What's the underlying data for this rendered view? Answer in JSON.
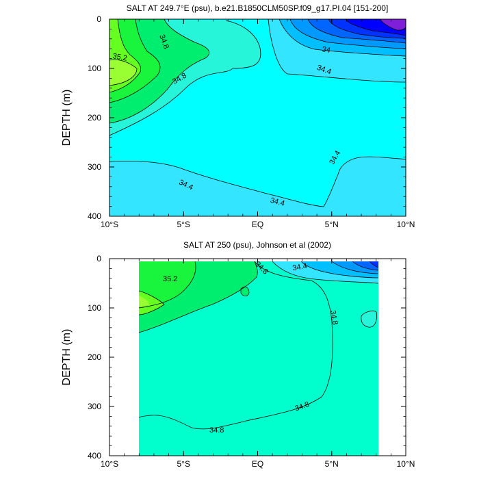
{
  "chart_data": [
    {
      "type": "contour",
      "title": "SALT AT 249.7°E (psu), b.e21.B1850CLM50SP.f09_g17.PI.04 [151-200]",
      "xlabel": "",
      "ylabel": "DEPTH (m)",
      "xlim": [
        -10,
        10
      ],
      "ylim": [
        400,
        0
      ],
      "x_ticks": [
        {
          "value": -10,
          "label": "10°S"
        },
        {
          "value": -5,
          "label": "5°S"
        },
        {
          "value": 0,
          "label": "EQ"
        },
        {
          "value": 5,
          "label": "5°N"
        },
        {
          "value": 10,
          "label": "10°N"
        }
      ],
      "y_ticks": [
        {
          "value": 0,
          "label": "0"
        },
        {
          "value": 100,
          "label": "100"
        },
        {
          "value": 200,
          "label": "200"
        },
        {
          "value": 300,
          "label": "300"
        },
        {
          "value": 400,
          "label": "400"
        }
      ],
      "data_extent": {
        "x": [
          -10,
          10
        ],
        "y": [
          0,
          400
        ]
      },
      "fill_colors": {
        "lt_33_6": "#7f1fd9",
        "33_6": "#0000ff",
        "33_7": "#0033ff",
        "33_8": "#0066ff",
        "33_9": "#0099ff",
        "34_0": "#00bfff",
        "34_2": "#33e5ff",
        "34_4": "#00ffff",
        "34_6": "#26f5d9",
        "34_8": "#00ffcc",
        "35_0": "#00ee70",
        "35_2": "#19f53c",
        "35_4": "#66ff22",
        "35_6": "#99ff33"
      },
      "contours": [
        {
          "level": 34.8,
          "label": "34.8",
          "label_at": [
            -6.2,
            25
          ],
          "points": [
            [
              -6.8,
              0
            ],
            [
              -5.5,
              35
            ],
            [
              -3,
              55
            ],
            [
              -4.5,
              90
            ],
            [
              -7.5,
              125
            ],
            [
              -10,
              180
            ]
          ]
        },
        {
          "level": 35.0,
          "label": "",
          "points": [
            [
              -8.2,
              0
            ],
            [
              -8,
              40
            ],
            [
              -7.5,
              80
            ],
            [
              -8.5,
              120
            ],
            [
              -10,
              140
            ]
          ]
        },
        {
          "level": 35.2,
          "label": "35.2",
          "label_at": [
            -9,
            70
          ],
          "points": [
            [
              -8.8,
              0
            ],
            [
              -8.6,
              50
            ],
            [
              -8.2,
              100
            ],
            [
              -9.2,
              125
            ],
            [
              -10,
              128
            ]
          ]
        },
        {
          "level": 35.4,
          "label": "",
          "points": [
            [
              -10,
              58
            ],
            [
              -9,
              85
            ],
            [
              -9,
              115
            ],
            [
              -10,
              120
            ]
          ]
        },
        {
          "level": 34.8,
          "label": "34.8",
          "label_at": [
            -5.3,
            112
          ],
          "points": [
            [
              -3,
              50
            ],
            [
              -6,
              90
            ],
            [
              -9,
              150
            ],
            [
              -10,
              160
            ]
          ]
        },
        {
          "level": 34.6,
          "label": "",
          "points": [
            [
              -10,
              195
            ],
            [
              -8,
              180
            ],
            [
              -5,
              145
            ],
            [
              -2,
              90
            ],
            [
              0.5,
              102
            ],
            [
              0.3,
              50
            ],
            [
              0,
              30
            ],
            [
              -1.5,
              10
            ],
            [
              -2,
              0
            ]
          ]
        },
        {
          "level": 34.6,
          "label": "",
          "points": [
            [
              0.8,
              0
            ],
            [
              1.5,
              20
            ],
            [
              2.2,
              100
            ],
            [
              6,
              110
            ],
            [
              9,
              125
            ],
            [
              10,
              130
            ]
          ]
        },
        {
          "level": 34.4,
          "label": "34.4",
          "label_at": [
            4.8,
            100
          ],
          "points": [
            [
              1.5,
              0
            ],
            [
              2,
              50
            ],
            [
              3.5,
              65
            ],
            [
              6,
              85
            ],
            [
              10,
              100
            ]
          ]
        },
        {
          "level": 34.2,
          "label": "",
          "points": [
            [
              2.6,
              0
            ],
            [
              3.5,
              40
            ],
            [
              6,
              60
            ],
            [
              10,
              70
            ]
          ]
        },
        {
          "level": 34.0,
          "label": "34",
          "label_at": [
            5.5,
            60
          ],
          "points": [
            [
              3.8,
              0
            ],
            [
              4.2,
              35
            ],
            [
              6,
              50
            ],
            [
              10,
              60
            ]
          ]
        },
        {
          "level": 33.9,
          "label": "",
          "points": [
            [
              5.2,
              0
            ],
            [
              5.5,
              25
            ],
            [
              8,
              40
            ],
            [
              10,
              45
            ]
          ]
        },
        {
          "level": 33.8,
          "label": "",
          "points": [
            [
              6.2,
              0
            ],
            [
              6.8,
              20
            ],
            [
              10,
              40
            ]
          ]
        },
        {
          "level": 33.7,
          "label": "",
          "points": [
            [
              7.2,
              0
            ],
            [
              7.6,
              15
            ],
            [
              10,
              35
            ]
          ]
        },
        {
          "level": 33.6,
          "label": "",
          "points": [
            [
              8.3,
              0
            ],
            [
              8.8,
              12
            ],
            [
              10,
              15
            ]
          ]
        },
        {
          "level": 34.4,
          "label": "34.4",
          "label_at": [
            -5,
            340
          ],
          "points": [
            [
              -10,
              290
            ],
            [
              -7,
              290
            ],
            [
              -3,
              335
            ],
            [
              1.5,
              355
            ],
            [
              3.5,
              380
            ],
            [
              4.8,
              330
            ],
            [
              5.5,
              260
            ],
            [
              7,
              245
            ],
            [
              10,
              285
            ]
          ]
        }
      ]
    },
    {
      "type": "contour",
      "title": "SALT AT 250 (psu), Johnson et al (2002)",
      "xlabel": "",
      "ylabel": "DEPTH (m)",
      "xlim": [
        -10,
        10
      ],
      "ylim": [
        400,
        0
      ],
      "x_ticks": [
        {
          "value": -10,
          "label": "10°S"
        },
        {
          "value": -5,
          "label": "5°S"
        },
        {
          "value": 0,
          "label": "EQ"
        },
        {
          "value": 5,
          "label": "5°N"
        },
        {
          "value": 10,
          "label": "10°N"
        }
      ],
      "y_ticks": [
        {
          "value": 0,
          "label": "0"
        },
        {
          "value": 100,
          "label": "100"
        },
        {
          "value": 200,
          "label": "200"
        },
        {
          "value": 300,
          "label": "300"
        },
        {
          "value": 400,
          "label": "400"
        }
      ],
      "data_extent": {
        "x": [
          -8,
          8.2
        ],
        "y": [
          5,
          400
        ]
      },
      "contours": [
        {
          "level": 35.0,
          "label": "",
          "points": [
            [
              -8,
              150
            ],
            [
              -6,
              130
            ],
            [
              -4,
              100
            ],
            [
              -2,
              80
            ],
            [
              -1,
              60
            ],
            [
              0,
              45
            ],
            [
              0.5,
              30
            ],
            [
              0.2,
              10
            ],
            [
              0,
              5
            ]
          ]
        },
        {
          "level": 35.2,
          "label": "35.2",
          "label_at": [
            -5.2,
            42
          ],
          "points": [
            [
              -8,
              100
            ],
            [
              -6.5,
              90
            ],
            [
              -5.5,
              70
            ],
            [
              -4.5,
              45
            ],
            [
              -4,
              5
            ]
          ]
        },
        {
          "level": 35.4,
          "label": "",
          "points": [
            [
              -8,
              65
            ],
            [
              -7,
              75
            ],
            [
              -6.5,
              95
            ],
            [
              -8,
              100
            ]
          ]
        },
        {
          "level": 34.8,
          "label": "34.8",
          "label_at": [
            0.2,
            18
          ],
          "points": [
            [
              0,
              5
            ],
            [
              1.5,
              30
            ],
            [
              3.8,
              40
            ],
            [
              4.8,
              80
            ],
            [
              4.9,
              200
            ],
            [
              4.5,
              280
            ],
            [
              2.5,
              320
            ],
            [
              -1,
              340
            ],
            [
              -3.5,
              350
            ],
            [
              -6,
              320
            ],
            [
              -8,
              318
            ]
          ]
        },
        {
          "level": 34.4,
          "label": "34.4",
          "label_at": [
            2.8,
            18
          ],
          "points": [
            [
              1.8,
              5
            ],
            [
              3,
              25
            ],
            [
              4.8,
              35
            ],
            [
              6.5,
              38
            ],
            [
              8.2,
              40
            ]
          ]
        },
        {
          "level": 34.2,
          "label": "",
          "points": [
            [
              4,
              5
            ],
            [
              5.5,
              20
            ],
            [
              7.5,
              30
            ],
            [
              8.2,
              32
            ]
          ]
        },
        {
          "level": 34.0,
          "label": "",
          "points": [
            [
              5.5,
              5
            ],
            [
              6.5,
              15
            ],
            [
              8.2,
              25
            ]
          ]
        },
        {
          "level": 33.8,
          "label": "",
          "points": [
            [
              6.8,
              5
            ],
            [
              7.5,
              12
            ],
            [
              8.2,
              15
            ]
          ]
        },
        {
          "level": 33.6,
          "label": "",
          "points": [
            [
              7.8,
              5
            ],
            [
              8.2,
              10
            ]
          ]
        },
        {
          "level": 35.0,
          "label": "",
          "points": [
            [
              -1,
              60
            ],
            [
              -0.8,
              70
            ],
            [
              -1.1,
              75
            ],
            [
              -1.2,
              65
            ],
            [
              -1,
              60
            ]
          ]
        },
        {
          "level": 34.6,
          "label": "",
          "points": [
            [
              7,
              115
            ],
            [
              7.8,
              110
            ],
            [
              8,
              135
            ],
            [
              7.2,
              140
            ],
            [
              7,
              115
            ]
          ]
        }
      ]
    }
  ]
}
